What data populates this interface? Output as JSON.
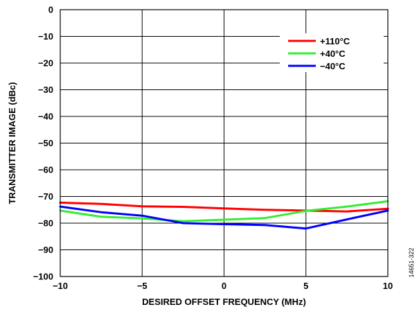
{
  "chart_data": {
    "type": "line",
    "xlabel": "DESIRED OFFSET FREQUENCY (MHz)",
    "ylabel": "TRANSMITTER IMAGE (dBc)",
    "xlim": [
      -10,
      10
    ],
    "ylim": [
      -100,
      0
    ],
    "xticks": [
      -10,
      -5,
      0,
      5,
      10
    ],
    "xtick_labels": [
      "−10",
      "−5",
      "0",
      "5",
      "10"
    ],
    "yticks": [
      0,
      -10,
      -20,
      -30,
      -40,
      -50,
      -60,
      -70,
      -80,
      -90,
      -100
    ],
    "ytick_labels": [
      "0",
      "−10",
      "−20",
      "−30",
      "−40",
      "−50",
      "−60",
      "−70",
      "−80",
      "−90",
      "−100"
    ],
    "grid": true,
    "legend_position": "top-right",
    "series": [
      {
        "name": "+110°C",
        "color": "#ff0000",
        "x": [
          -10,
          -7.5,
          -5,
          -2.5,
          0,
          2.5,
          5,
          7.5,
          10
        ],
        "y": [
          -72.3,
          -72.8,
          -73.7,
          -73.9,
          -74.5,
          -75.0,
          -75.3,
          -75.6,
          -74.6
        ]
      },
      {
        "name": "+40°C",
        "color": "#33ee33",
        "x": [
          -10,
          -7.5,
          -5,
          -2.5,
          0,
          2.5,
          5,
          7.5,
          10
        ],
        "y": [
          -75.3,
          -77.6,
          -78.2,
          -79.3,
          -78.7,
          -78.1,
          -75.4,
          -73.8,
          -71.8
        ]
      },
      {
        "name": "−40°C",
        "color": "#0000ff",
        "x": [
          -10,
          -7.5,
          -5,
          -2.5,
          0,
          2.5,
          5,
          7.5,
          10
        ],
        "y": [
          -73.8,
          -75.9,
          -77.2,
          -80.0,
          -80.4,
          -80.7,
          -82.0,
          -78.6,
          -75.3
        ]
      }
    ],
    "figure_id": "14651-322"
  }
}
